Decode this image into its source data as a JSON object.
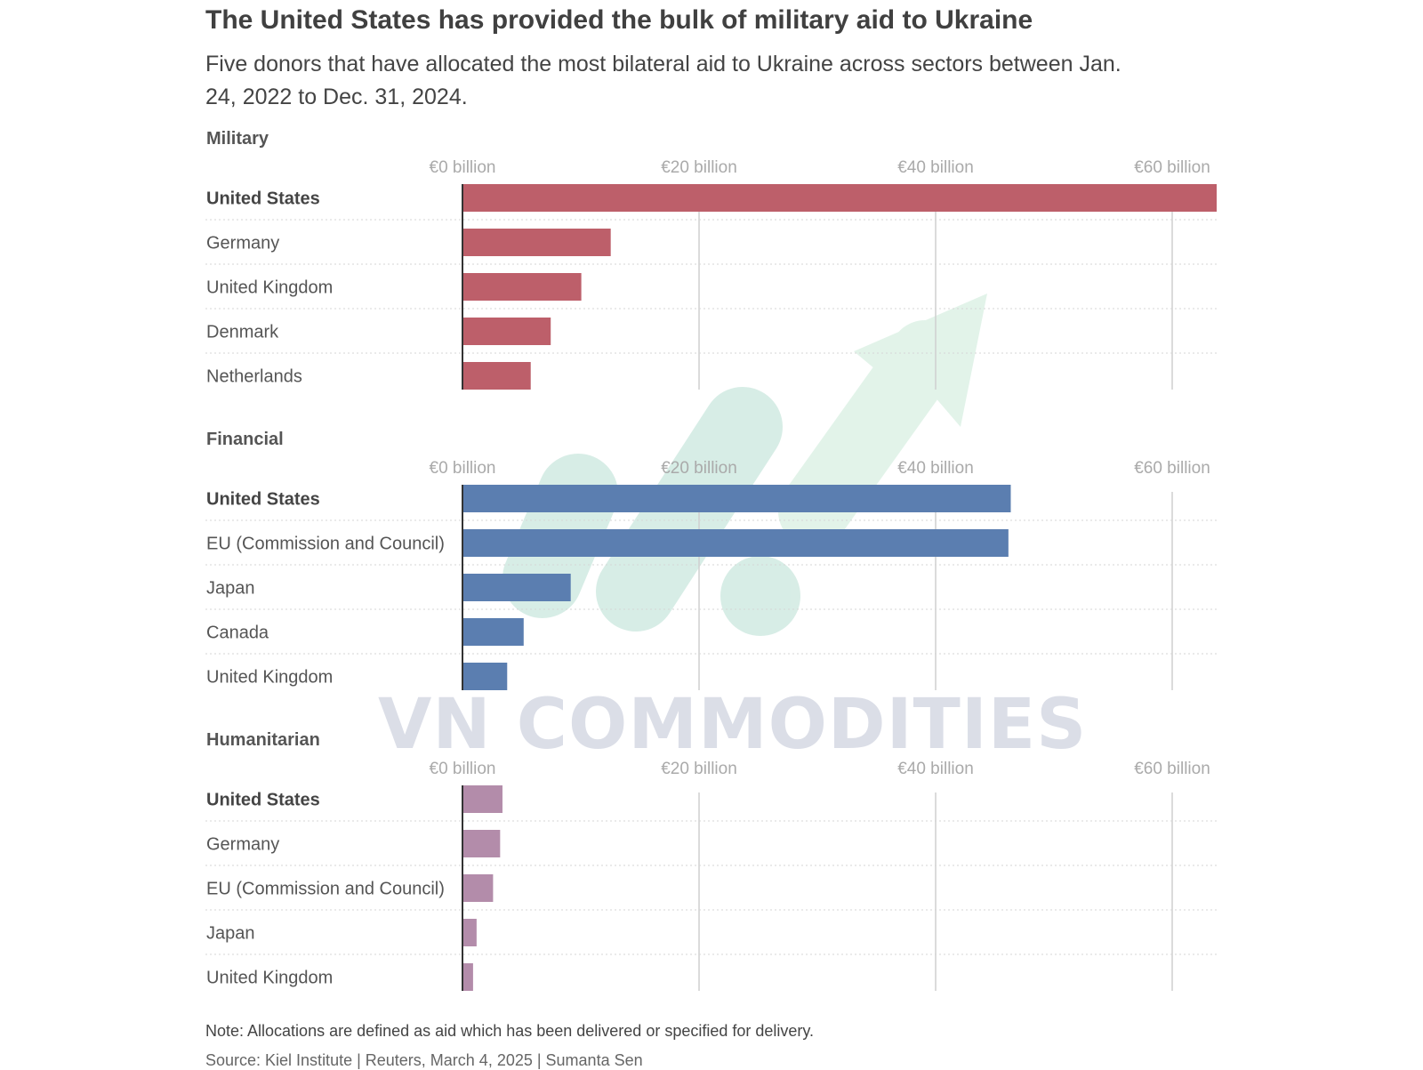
{
  "title": "The United States has provided the bulk of military aid to Ukraine",
  "subtitle": "Five donors that have allocated the most bilateral aid to Ukraine across sectors between Jan. 24, 2022 to Dec. 31, 2024.",
  "note": "Note: Allocations are defined as aid which has been delivered or specified for delivery.",
  "source": "Source: Kiel Institute | Reuters, March 4, 2025 | Sumanta Sen",
  "watermark": {
    "text": "VN COMMODITIES"
  },
  "chart_data": [
    {
      "type": "bar",
      "orientation": "horizontal",
      "title": "Military",
      "categories": [
        "United States",
        "Germany",
        "United Kingdom",
        "Denmark",
        "Netherlands"
      ],
      "values": [
        64.1,
        12.6,
        10.1,
        7.5,
        5.8
      ],
      "xlim": [
        0,
        64.1
      ],
      "ticks": [
        0,
        20,
        40,
        60
      ],
      "tick_labels": [
        "€0 billion",
        "€20 billion",
        "€40 billion",
        "€60 billion"
      ],
      "color": "#bd5f6a",
      "highlight_category": "United States",
      "grid": true
    },
    {
      "type": "bar",
      "orientation": "horizontal",
      "title": "Financial",
      "categories": [
        "United States",
        "EU (Commission and Council)",
        "Japan",
        "Canada",
        "United Kingdom"
      ],
      "values": [
        46.6,
        46.4,
        9.2,
        5.2,
        3.8
      ],
      "xlim": [
        0,
        64.1
      ],
      "ticks": [
        0,
        20,
        40,
        60
      ],
      "tick_labels": [
        "€0 billion",
        "€20 billion",
        "€40 billion",
        "€60 billion"
      ],
      "color": "#5b7eb0",
      "highlight_category": "United States",
      "grid": true
    },
    {
      "type": "bar",
      "orientation": "horizontal",
      "title": "Humanitarian",
      "categories": [
        "United States",
        "Germany",
        "EU (Commission and Council)",
        "Japan",
        "United Kingdom"
      ],
      "values": [
        3.4,
        3.2,
        2.6,
        1.2,
        0.9
      ],
      "xlim": [
        0,
        64.1
      ],
      "ticks": [
        0,
        20,
        40,
        60
      ],
      "tick_labels": [
        "€0 billion",
        "€20 billion",
        "€40 billion",
        "€60 billion"
      ],
      "color": "#b38caa",
      "highlight_category": "United States",
      "grid": true
    }
  ]
}
